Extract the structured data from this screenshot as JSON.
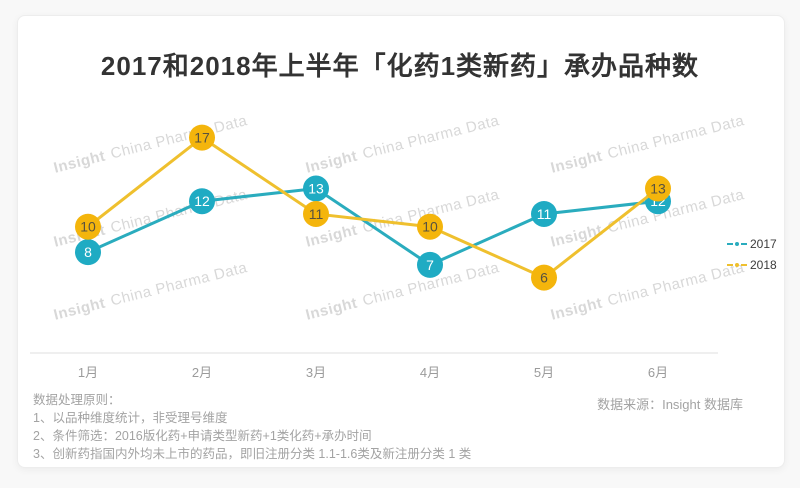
{
  "title": "2017和2018年上半年「化药1类新药」承办品种数",
  "watermark": {
    "brand": "Insight",
    "rest": "China Pharma Data"
  },
  "chart_data": {
    "type": "line",
    "title": "2017和2018年上半年「化药1类新药」承办品种数",
    "categories": [
      "1月",
      "2月",
      "3月",
      "4月",
      "5月",
      "6月"
    ],
    "series": [
      {
        "name": "2017",
        "values": [
          8,
          12,
          13,
          7,
          11,
          12
        ],
        "color": "#1fabc3",
        "line_color": "#2aacbe",
        "label_color": "#ffffff"
      },
      {
        "name": "2018",
        "values": [
          10,
          17,
          11,
          10,
          6,
          13
        ],
        "color": "#f4b50c",
        "line_color": "#efc02e",
        "label_color": "#58523f"
      }
    ],
    "xlabel": "",
    "ylabel": "",
    "ylim": [
      0,
      20
    ],
    "grid": false,
    "legend_position": "right",
    "axis_color": "#eaeaea"
  },
  "notes": {
    "heading": "数据处理原则：",
    "items": [
      "1、以品种维度统计，非受理号维度",
      "2、条件筛选：2016版化药+申请类型新药+1类化药+承办时间",
      "3、创新药指国内外均未上市的药品，即旧注册分类 1.1-1.6类及新注册分类 1 类"
    ]
  },
  "source": "数据来源：Insight 数据库"
}
